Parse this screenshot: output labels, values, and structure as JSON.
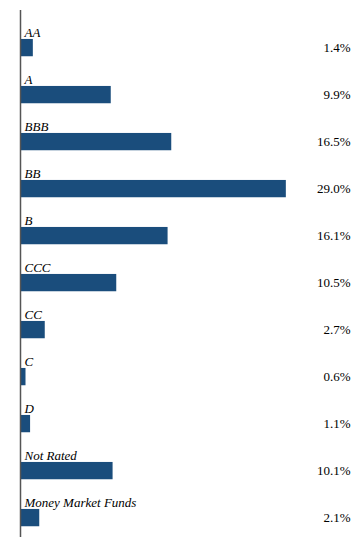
{
  "chart_data": {
    "type": "bar",
    "orientation": "horizontal",
    "categories": [
      "AA",
      "A",
      "BBB",
      "BB",
      "B",
      "CCC",
      "CC",
      "C",
      "D",
      "Not Rated",
      "Money Market Funds"
    ],
    "values": [
      1.4,
      9.9,
      16.5,
      29.0,
      16.1,
      10.5,
      2.7,
      0.6,
      1.1,
      10.1,
      2.1
    ],
    "value_labels": [
      "1.4%",
      "9.9%",
      "16.5%",
      "29.0%",
      "16.1%",
      "10.5%",
      "2.7%",
      "0.6%",
      "1.1%",
      "10.1%",
      "2.1%"
    ],
    "color": "#1a4d7c",
    "xlim": [
      0,
      36
    ],
    "data_labels": true,
    "tick_labels": false,
    "grid": false
  }
}
